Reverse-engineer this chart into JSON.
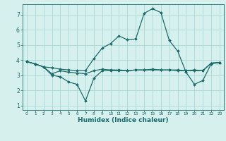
{
  "xlabel": "Humidex (Indice chaleur)",
  "ylabel": "",
  "bg_color": "#d6f0ee",
  "grid_color": "#aad8d4",
  "line_color": "#1a6b6b",
  "xlim": [
    -0.5,
    23.5
  ],
  "ylim": [
    0.7,
    7.7
  ],
  "xticks": [
    0,
    1,
    2,
    3,
    4,
    5,
    6,
    7,
    8,
    9,
    10,
    11,
    12,
    13,
    14,
    15,
    16,
    17,
    18,
    19,
    20,
    21,
    22,
    23
  ],
  "yticks": [
    1,
    2,
    3,
    4,
    5,
    6,
    7
  ],
  "lines": [
    {
      "x": [
        0,
        1,
        2,
        3,
        4,
        5,
        6,
        7,
        8,
        9,
        10,
        11,
        12,
        13,
        14,
        15,
        16,
        17,
        18,
        19,
        20,
        21,
        22,
        23
      ],
      "y": [
        3.9,
        3.75,
        3.55,
        3.0,
        2.9,
        2.55,
        2.4,
        1.3,
        2.8,
        3.3,
        3.3,
        3.3,
        3.3,
        3.35,
        3.35,
        3.35,
        3.35,
        3.35,
        3.35,
        3.3,
        3.3,
        3.3,
        3.8,
        3.85
      ]
    },
    {
      "x": [
        0,
        1,
        2,
        3,
        4,
        5,
        6,
        7,
        8,
        9,
        10,
        11,
        12,
        13,
        14,
        15,
        16,
        17,
        18,
        19,
        20,
        21,
        22,
        23
      ],
      "y": [
        3.9,
        3.75,
        3.55,
        3.5,
        3.4,
        3.35,
        3.3,
        3.3,
        4.1,
        4.8,
        5.1,
        5.6,
        5.35,
        5.4,
        7.1,
        7.4,
        7.15,
        5.3,
        4.6,
        3.2,
        2.4,
        2.65,
        3.75,
        3.85
      ]
    },
    {
      "x": [
        0,
        1,
        2,
        3,
        4,
        5,
        6,
        7,
        8,
        9,
        10,
        11,
        12,
        13,
        14,
        15,
        16,
        17,
        18,
        19,
        20,
        21,
        22,
        23
      ],
      "y": [
        3.9,
        3.75,
        3.55,
        3.1,
        3.3,
        3.2,
        3.15,
        3.1,
        3.3,
        3.4,
        3.35,
        3.35,
        3.3,
        3.35,
        3.35,
        3.4,
        3.35,
        3.35,
        3.3,
        3.3,
        3.35,
        3.3,
        3.8,
        3.85
      ]
    }
  ]
}
